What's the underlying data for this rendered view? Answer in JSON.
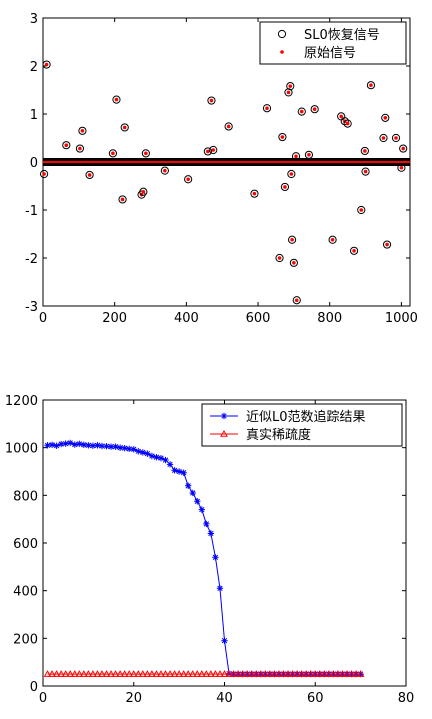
{
  "chart_data": [
    {
      "type": "scatter",
      "xlim": [
        0,
        1024
      ],
      "ylim": [
        -3,
        3
      ],
      "xticks": [
        0,
        200,
        400,
        600,
        800,
        1000
      ],
      "yticks": [
        -3,
        -2,
        -1,
        0,
        1,
        2,
        3
      ],
      "xtick_labels": [
        "0",
        "200",
        "400",
        "600",
        "800",
        "1000"
      ],
      "ytick_labels": [
        "-3",
        "-2",
        "-1",
        "0",
        "1",
        "2",
        "3"
      ],
      "legend_placement": "top-right",
      "grid": false,
      "zero_band_range": [
        0,
        1024
      ],
      "series": [
        {
          "name": "SL0恢复信号",
          "marker": "circle-open",
          "color": "#000000"
        },
        {
          "name": "原始信号",
          "marker": "dot",
          "color": "#ff0000"
        }
      ],
      "points": [
        [
          3,
          -0.25
        ],
        [
          10,
          2.03
        ],
        [
          65,
          0.35
        ],
        [
          103,
          0.28
        ],
        [
          110,
          0.65
        ],
        [
          130,
          -0.27
        ],
        [
          195,
          0.18
        ],
        [
          205,
          1.3
        ],
        [
          222,
          -0.78
        ],
        [
          228,
          0.72
        ],
        [
          275,
          -0.68
        ],
        [
          280,
          -0.62
        ],
        [
          287,
          0.18
        ],
        [
          340,
          -0.18
        ],
        [
          405,
          -0.36
        ],
        [
          460,
          0.22
        ],
        [
          470,
          1.28
        ],
        [
          475,
          0.25
        ],
        [
          518,
          0.74
        ],
        [
          590,
          -0.66
        ],
        [
          625,
          1.12
        ],
        [
          660,
          -2.0
        ],
        [
          668,
          0.52
        ],
        [
          675,
          -0.52
        ],
        [
          685,
          1.45
        ],
        [
          690,
          1.58
        ],
        [
          693,
          -0.25
        ],
        [
          695,
          -1.62
        ],
        [
          700,
          -2.1
        ],
        [
          706,
          0.12
        ],
        [
          708,
          -2.88
        ],
        [
          722,
          1.05
        ],
        [
          742,
          0.15
        ],
        [
          758,
          1.1
        ],
        [
          808,
          -1.62
        ],
        [
          832,
          0.95
        ],
        [
          842,
          0.85
        ],
        [
          850,
          0.8
        ],
        [
          868,
          -1.85
        ],
        [
          888,
          -1.0
        ],
        [
          898,
          0.23
        ],
        [
          900,
          -0.2
        ],
        [
          915,
          1.6
        ],
        [
          950,
          0.5
        ],
        [
          955,
          0.92
        ],
        [
          960,
          -1.72
        ],
        [
          985,
          0.5
        ],
        [
          1000,
          -0.12
        ],
        [
          1005,
          0.28
        ]
      ]
    },
    {
      "type": "line",
      "xlim": [
        0,
        80
      ],
      "ylim": [
        0,
        1200
      ],
      "xticks": [
        0,
        20,
        40,
        60,
        80
      ],
      "yticks": [
        0,
        200,
        400,
        600,
        800,
        1000,
        1200
      ],
      "xtick_labels": [
        "0",
        "20",
        "40",
        "60",
        "80"
      ],
      "ytick_labels": [
        "0",
        "200",
        "400",
        "600",
        "800",
        "1000",
        "1200"
      ],
      "legend_placement": "top-right",
      "grid": false,
      "x": [
        1,
        2,
        3,
        4,
        5,
        6,
        7,
        8,
        9,
        10,
        11,
        12,
        13,
        14,
        15,
        16,
        17,
        18,
        19,
        20,
        21,
        22,
        23,
        24,
        25,
        26,
        27,
        28,
        29,
        30,
        31,
        32,
        33,
        34,
        35,
        36,
        37,
        38,
        39,
        40,
        41,
        42,
        43,
        44,
        45,
        46,
        47,
        48,
        49,
        50,
        51,
        52,
        53,
        54,
        55,
        56,
        57,
        58,
        59,
        60,
        61,
        62,
        63,
        64,
        65,
        66,
        67,
        68,
        69,
        70
      ],
      "series": [
        {
          "name": "近似L0范数追踪结果",
          "color": "#0000ff",
          "marker": "star",
          "values": [
            1010,
            1012,
            1008,
            1015,
            1017,
            1020,
            1013,
            1016,
            1012,
            1010,
            1008,
            1010,
            1007,
            1006,
            1004,
            1004,
            1000,
            998,
            995,
            993,
            985,
            980,
            975,
            965,
            960,
            956,
            948,
            930,
            905,
            900,
            895,
            840,
            810,
            775,
            740,
            680,
            640,
            540,
            410,
            190,
            52,
            50,
            50,
            50,
            50,
            50,
            50,
            50,
            50,
            50,
            50,
            50,
            50,
            50,
            50,
            50,
            50,
            50,
            50,
            50,
            50,
            50,
            50,
            50,
            50,
            50,
            50,
            50,
            50,
            50
          ]
        },
        {
          "name": "真实稀疏度",
          "color": "#ff0000",
          "marker": "triangle-open",
          "values": [
            50,
            50,
            50,
            50,
            50,
            50,
            50,
            50,
            50,
            50,
            50,
            50,
            50,
            50,
            50,
            50,
            50,
            50,
            50,
            50,
            50,
            50,
            50,
            50,
            50,
            50,
            50,
            50,
            50,
            50,
            50,
            50,
            50,
            50,
            50,
            50,
            50,
            50,
            50,
            50,
            50,
            50,
            50,
            50,
            50,
            50,
            50,
            50,
            50,
            50,
            50,
            50,
            50,
            50,
            50,
            50,
            50,
            50,
            50,
            50,
            50,
            50,
            50,
            50,
            50,
            50,
            50,
            50,
            50,
            50
          ]
        }
      ]
    }
  ]
}
